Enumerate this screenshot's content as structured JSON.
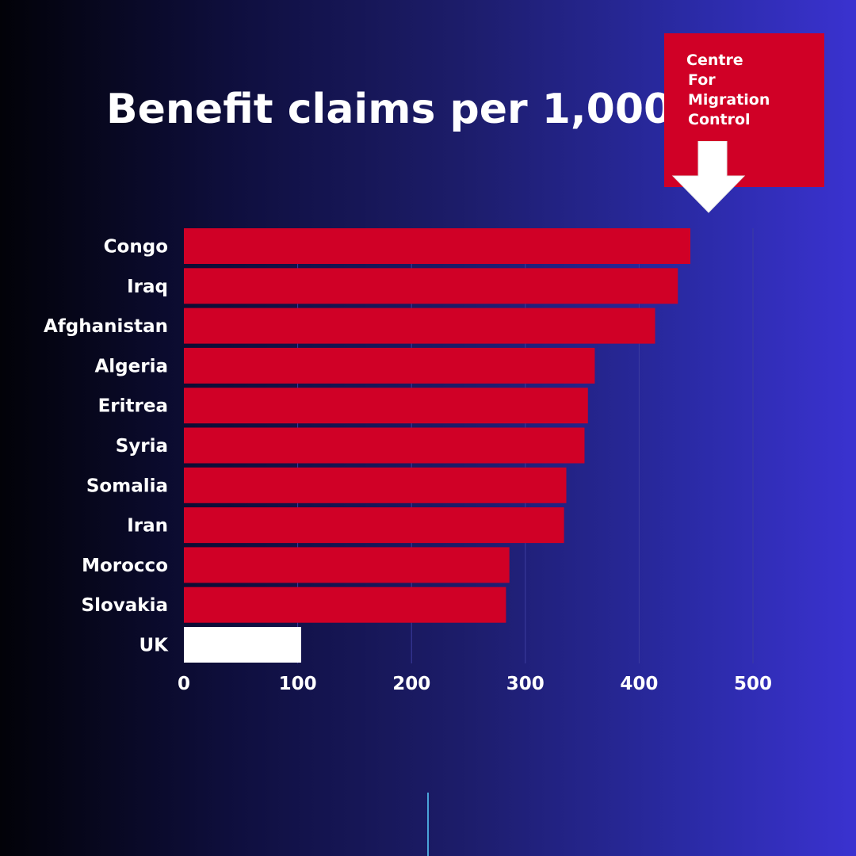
{
  "title": "Benefit claims per 1,000",
  "logo": {
    "lines": [
      "Centre",
      "For",
      "Migration",
      "Control"
    ],
    "color": "#d00026",
    "icon": "down-arrow-icon"
  },
  "colors": {
    "bar": "#d00026",
    "highlight_bar": "#ffffff",
    "text": "#ffffff",
    "grid": "#3c3ca0"
  },
  "chart_data": {
    "type": "bar",
    "orientation": "horizontal",
    "title": "Benefit claims per 1,000",
    "categories": [
      "Congo",
      "Iraq",
      "Afghanistan",
      "Algeria",
      "Eritrea",
      "Syria",
      "Somalia",
      "Iran",
      "Morocco",
      "Slovakia",
      "UK"
    ],
    "values": [
      445,
      434,
      414,
      361,
      355,
      352,
      336,
      334,
      286,
      283,
      103
    ],
    "highlight": "UK",
    "xlim": [
      0,
      500
    ],
    "xticks": [
      0,
      100,
      200,
      300,
      400,
      500
    ],
    "grid": true
  }
}
